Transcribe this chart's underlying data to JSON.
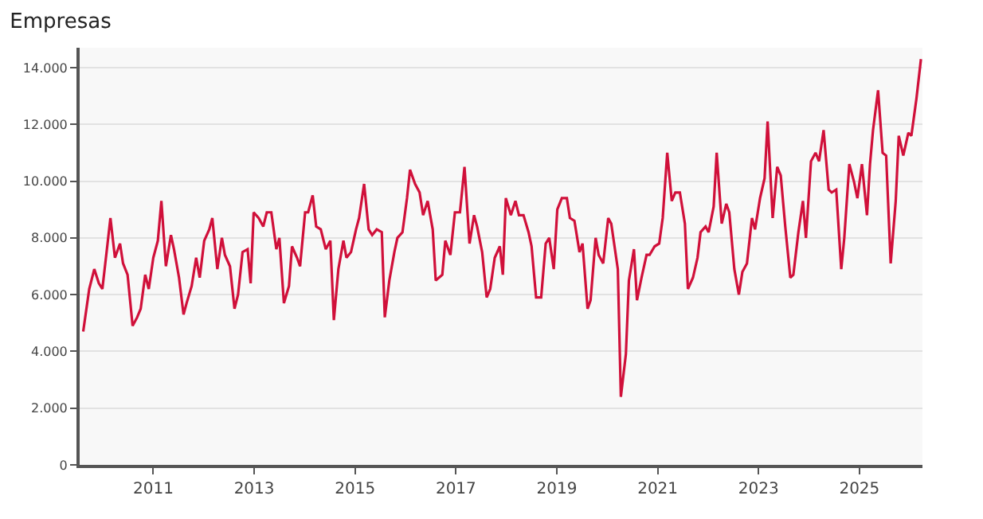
{
  "chart_data": {
    "type": "line",
    "title": "Empresas",
    "xlim": [
      2009.54,
      2026.25
    ],
    "xticks": [
      2011,
      2013,
      2015,
      2017,
      2019,
      2021,
      2023,
      2025
    ],
    "ylim": [
      0,
      14700
    ],
    "yticks": [
      {
        "value": 0,
        "label": "0"
      },
      {
        "value": 2000,
        "label": "2.000"
      },
      {
        "value": 4000,
        "label": "4.000"
      },
      {
        "value": 6000,
        "label": "6.000"
      },
      {
        "value": 8000,
        "label": "8.000"
      },
      {
        "value": 10000,
        "label": "10.000"
      },
      {
        "value": 12000,
        "label": "12.000"
      },
      {
        "value": 14000,
        "label": "14.000"
      }
    ],
    "grid": "y",
    "marker": "none",
    "line_style": "solid",
    "series": [
      {
        "color": "#d0103a",
        "x": [
          2009.61,
          2009.73,
          2009.83,
          2009.92,
          2009.99,
          2010.08,
          2010.15,
          2010.24,
          2010.34,
          2010.4,
          2010.49,
          2010.59,
          2010.68,
          2010.75,
          2010.84,
          2010.91,
          2011.0,
          2011.09,
          2011.16,
          2011.25,
          2011.35,
          2011.41,
          2011.51,
          2011.6,
          2011.66,
          2011.76,
          2011.85,
          2011.92,
          2012.01,
          2012.11,
          2012.17,
          2012.27,
          2012.36,
          2012.42,
          2012.52,
          2012.61,
          2012.68,
          2012.77,
          2012.87,
          2012.93,
          2012.99,
          2013.09,
          2013.18,
          2013.25,
          2013.34,
          2013.44,
          2013.5,
          2013.59,
          2013.69,
          2013.75,
          2013.85,
          2013.91,
          2014.01,
          2014.07,
          2014.16,
          2014.23,
          2014.32,
          2014.42,
          2014.51,
          2014.58,
          2014.67,
          2014.77,
          2014.83,
          2014.92,
          2015.02,
          2015.08,
          2015.18,
          2015.27,
          2015.34,
          2015.43,
          2015.53,
          2015.59,
          2015.68,
          2015.78,
          2015.84,
          2015.94,
          2016.03,
          2016.09,
          2016.19,
          2016.28,
          2016.35,
          2016.44,
          2016.54,
          2016.6,
          2016.73,
          2016.79,
          2016.89,
          2016.98,
          2017.08,
          2017.17,
          2017.27,
          2017.36,
          2017.42,
          2017.52,
          2017.61,
          2017.68,
          2017.77,
          2017.87,
          2017.93,
          2017.99,
          2018.09,
          2018.18,
          2018.25,
          2018.34,
          2018.44,
          2018.5,
          2018.59,
          2018.69,
          2018.78,
          2018.85,
          2018.94,
          2019.01,
          2019.1,
          2019.2,
          2019.26,
          2019.35,
          2019.45,
          2019.51,
          2019.61,
          2019.67,
          2019.77,
          2019.83,
          2019.92,
          2020.02,
          2020.08,
          2020.21,
          2020.27,
          2020.37,
          2020.43,
          2020.53,
          2020.59,
          2020.68,
          2020.78,
          2020.84,
          2020.94,
          2021.03,
          2021.1,
          2021.19,
          2021.28,
          2021.35,
          2021.44,
          2021.54,
          2021.6,
          2021.7,
          2021.79,
          2021.85,
          2021.95,
          2022.01,
          2022.11,
          2022.17,
          2022.27,
          2022.36,
          2022.42,
          2022.52,
          2022.61,
          2022.68,
          2022.77,
          2022.87,
          2022.93,
          2023.03,
          2023.12,
          2023.18,
          2023.28,
          2023.37,
          2023.44,
          2023.53,
          2023.63,
          2023.69,
          2023.79,
          2023.88,
          2023.94,
          2024.04,
          2024.13,
          2024.2,
          2024.29,
          2024.39,
          2024.45,
          2024.54,
          2024.64,
          2024.7,
          2024.8,
          2024.89,
          2024.96,
          2025.05,
          2025.15,
          2025.21,
          2025.27,
          2025.37,
          2025.46,
          2025.53,
          2025.62,
          2025.72,
          2025.78,
          2025.87,
          2025.97,
          2026.03,
          2026.13,
          2026.22
        ],
        "values": [
          4700,
          6200,
          6900,
          6400,
          6200,
          7600,
          8700,
          7300,
          7800,
          7100,
          6700,
          4900,
          5200,
          5500,
          6700,
          6200,
          7300,
          7900,
          9300,
          7000,
          8100,
          7600,
          6600,
          5300,
          5700,
          6300,
          7300,
          6600,
          7900,
          8300,
          8700,
          6900,
          8000,
          7400,
          7000,
          5500,
          6000,
          7500,
          7600,
          6400,
          8900,
          8700,
          8400,
          8900,
          8900,
          7600,
          8000,
          5700,
          6300,
          7700,
          7300,
          7000,
          8900,
          8900,
          9500,
          8400,
          8300,
          7600,
          7900,
          5100,
          6900,
          7900,
          7300,
          7500,
          8300,
          8700,
          9900,
          8300,
          8100,
          8300,
          8200,
          5200,
          6500,
          7500,
          8000,
          8200,
          9400,
          10400,
          9900,
          9600,
          8800,
          9300,
          8300,
          6500,
          6700,
          7900,
          7400,
          8900,
          8900,
          10500,
          7800,
          8800,
          8400,
          7500,
          5900,
          6200,
          7300,
          7700,
          6700,
          9400,
          8800,
          9300,
          8800,
          8800,
          8200,
          7700,
          5900,
          5900,
          7800,
          8000,
          6900,
          9000,
          9400,
          9400,
          8700,
          8600,
          7500,
          7800,
          5500,
          5800,
          8000,
          7400,
          7100,
          8700,
          8500,
          6900,
          2400,
          3900,
          6500,
          7600,
          5800,
          6600,
          7400,
          7400,
          7700,
          7800,
          8700,
          11000,
          9300,
          9600,
          9600,
          8500,
          6200,
          6600,
          7300,
          8200,
          8400,
          8200,
          9100,
          11000,
          8500,
          9200,
          8900,
          6900,
          6000,
          6800,
          7100,
          8700,
          8300,
          9400,
          10100,
          12100,
          8700,
          10500,
          10200,
          8400,
          6600,
          6700,
          8200,
          9300,
          8000,
          10700,
          11000,
          10700,
          11800,
          9700,
          9600,
          9700,
          6900,
          8000,
          10600,
          10000,
          9400,
          10600,
          8800,
          10600,
          11800,
          13200,
          11000,
          10900,
          7100,
          9300,
          11600,
          10900,
          11700,
          11600,
          12900,
          14300
        ]
      }
    ]
  }
}
